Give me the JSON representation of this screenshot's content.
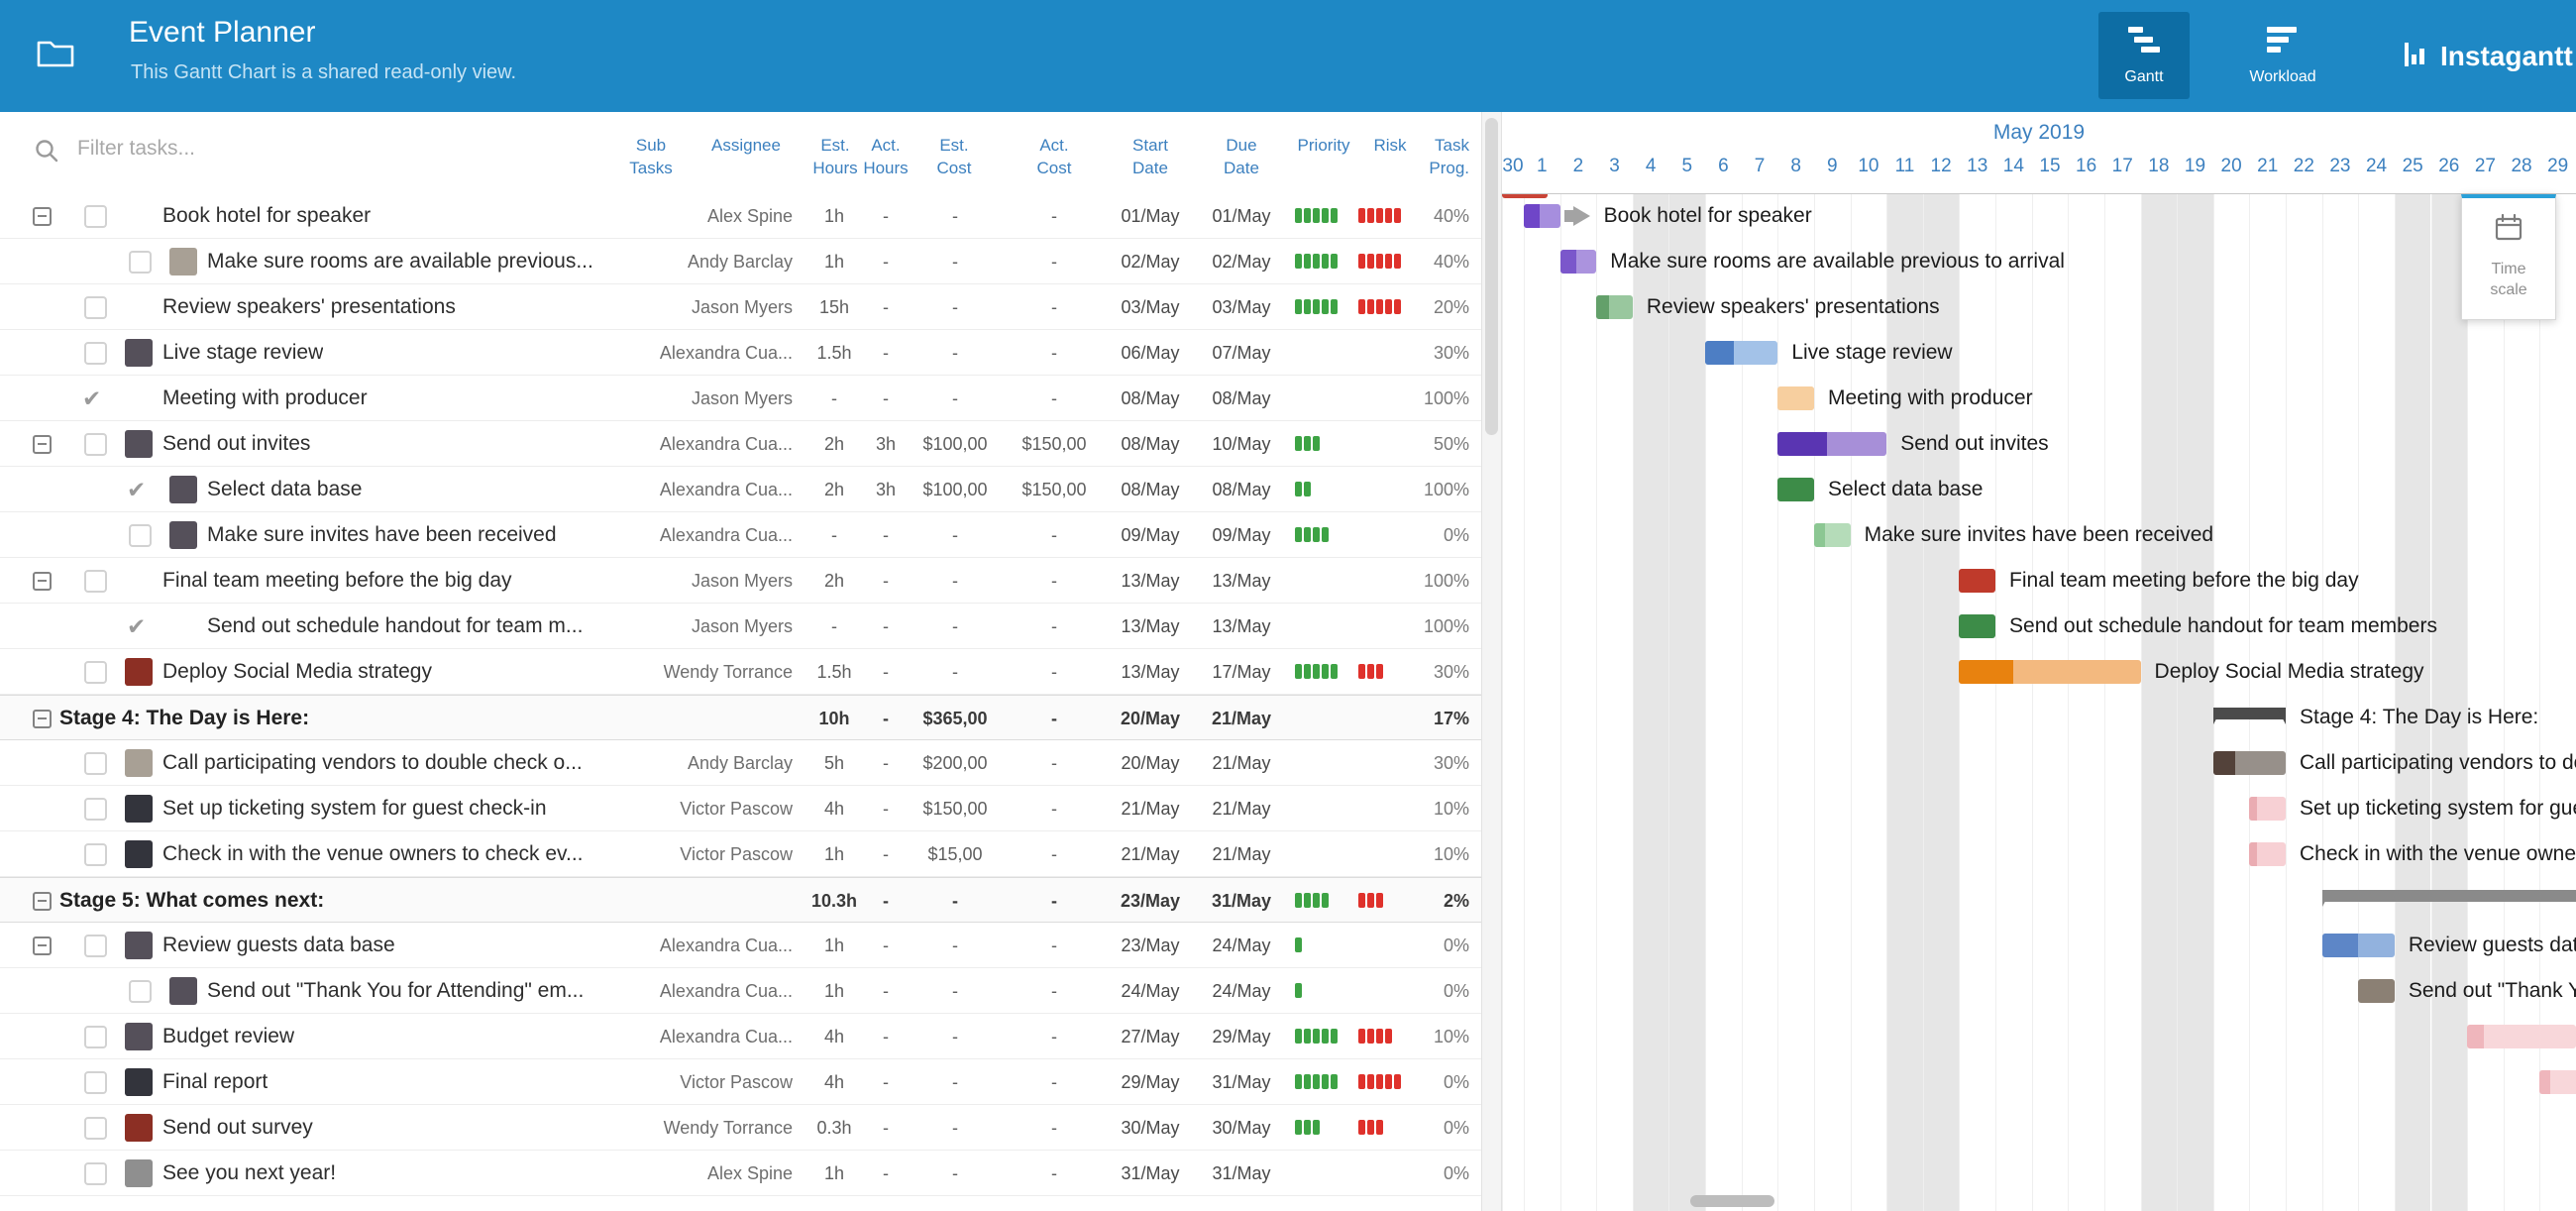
{
  "header": {
    "title": "Event Planner",
    "subtitle": "This Gantt Chart is a shared read-only view.",
    "nav": [
      {
        "label": "Gantt",
        "active": true
      },
      {
        "label": "Workload",
        "active": false
      }
    ],
    "brand": "Instagantt"
  },
  "left": {
    "filter_placeholder": "Filter tasks...",
    "columns": [
      {
        "cls": "sub",
        "lines": [
          "Sub",
          "Tasks"
        ]
      },
      {
        "cls": "assignee",
        "lines": [
          "Assignee"
        ]
      },
      {
        "cls": "esth",
        "lines": [
          "Est.",
          "Hours"
        ]
      },
      {
        "cls": "acth",
        "lines": [
          "Act.",
          "Hours"
        ]
      },
      {
        "cls": "estc",
        "lines": [
          "Est.",
          "Cost"
        ]
      },
      {
        "cls": "actc",
        "lines": [
          "Act.",
          "Cost"
        ]
      },
      {
        "cls": "start",
        "lines": [
          "Start",
          "Date"
        ]
      },
      {
        "cls": "due",
        "lines": [
          "Due",
          "Date"
        ]
      },
      {
        "cls": "pri",
        "lines": [
          "Priority"
        ]
      },
      {
        "cls": "risk",
        "lines": [
          "Risk"
        ]
      },
      {
        "cls": "prog",
        "lines": [
          "Task",
          "Prog."
        ]
      }
    ]
  },
  "timeline": {
    "month": "May 2019",
    "days": [
      "30",
      "1",
      "2",
      "3",
      "4",
      "5",
      "6",
      "7",
      "8",
      "9",
      "10",
      "11",
      "12",
      "13",
      "14",
      "15",
      "16",
      "17",
      "18",
      "19",
      "20",
      "21",
      "22",
      "23",
      "24",
      "25",
      "26",
      "27",
      "28",
      "29"
    ],
    "weekends": [
      4,
      5,
      11,
      12,
      18,
      19,
      25,
      26
    ]
  },
  "timescale": {
    "label": "Time scale"
  },
  "rows": [
    {
      "name": "Book hotel for speaker",
      "exp": true,
      "check": "box",
      "assignee": "Alex Spine",
      "eh": "1h",
      "start": "01/May",
      "due": "01/May",
      "pri": 5,
      "risk": 5,
      "prog": "40%",
      "bar": {
        "s": 1,
        "e": 1,
        "dark": "#6f46c8",
        "light": "#a68ede",
        "fill": 0.45,
        "arrow": true
      }
    },
    {
      "name": "Make sure rooms are available previous...",
      "full": "Make sure rooms are available previous to arrival",
      "indent": true,
      "check": "box",
      "avatar": "#a8a095",
      "assignee": "Andy Barclay",
      "eh": "1h",
      "start": "02/May",
      "due": "02/May",
      "pri": 5,
      "risk": 5,
      "prog": "40%",
      "bar": {
        "s": 2,
        "e": 2,
        "dark": "#7b57cb",
        "light": "#ab93de",
        "fill": 0.45
      }
    },
    {
      "name": "Review speakers' presentations",
      "check": "box",
      "assignee": "Jason Myers",
      "eh": "15h",
      "start": "03/May",
      "due": "03/May",
      "pri": 5,
      "risk": 5,
      "prog": "20%",
      "bar": {
        "s": 3,
        "e": 3,
        "dark": "#63a06a",
        "light": "#99c79e",
        "fill": 0.35
      }
    },
    {
      "name": "Live stage review",
      "check": "box",
      "avatar": "#55505a",
      "assignee": "Alexandra Cua...",
      "eh": "1.5h",
      "start": "06/May",
      "due": "07/May",
      "prog": "30%",
      "bar": {
        "s": 6,
        "e": 7,
        "dark": "#4d7ec4",
        "light": "#a3c2e8",
        "fill": 0.4
      }
    },
    {
      "name": "Meeting with producer",
      "check": "done",
      "assignee": "Jason Myers",
      "eh": "-",
      "start": "08/May",
      "due": "08/May",
      "prog": "100%",
      "bar": {
        "s": 8,
        "e": 8,
        "dark": "#f7cf9f",
        "light": "#f9d9b3",
        "fill": 1
      }
    },
    {
      "name": "Send out invites",
      "exp": true,
      "check": "box",
      "avatar": "#55505a",
      "assignee": "Alexandra Cua...",
      "eh": "2h",
      "ah": "3h",
      "ec": "$100,00",
      "ac": "$150,00",
      "start": "08/May",
      "due": "10/May",
      "pri": 3,
      "prog": "50%",
      "bar": {
        "s": 8,
        "e": 10,
        "dark": "#5a35b2",
        "light": "#a78fd8",
        "fill": 0.45
      }
    },
    {
      "name": "Select data base",
      "indent": true,
      "check": "done",
      "avatar": "#55505a",
      "assignee": "Alexandra Cua...",
      "eh": "2h",
      "ah": "3h",
      "ec": "$100,00",
      "ac": "$150,00",
      "start": "08/May",
      "due": "08/May",
      "pri": 2,
      "prog": "100%",
      "bar": {
        "s": 8,
        "e": 8,
        "dark": "#3d8c48",
        "light": "#3d8c48",
        "fill": 1
      }
    },
    {
      "name": "Make sure invites have been received",
      "indent": true,
      "check": "box",
      "avatar": "#55505a",
      "assignee": "Alexandra Cua...",
      "eh": "-",
      "start": "09/May",
      "due": "09/May",
      "pri": 4,
      "prog": "0%",
      "bar": {
        "s": 9,
        "e": 9,
        "dark": "#8cc793",
        "light": "#b5dcb9",
        "fill": 0.3
      }
    },
    {
      "name": "Final team meeting before the big day",
      "exp": true,
      "check": "box",
      "assignee": "Jason Myers",
      "eh": "2h",
      "start": "13/May",
      "due": "13/May",
      "prog": "100%",
      "bar": {
        "s": 13,
        "e": 13,
        "dark": "#bf3a2b",
        "light": "#bf3a2b",
        "fill": 1
      }
    },
    {
      "name": "Send out schedule handout for team m...",
      "full": "Send out schedule handout for team members",
      "indent": true,
      "check": "done",
      "assignee": "Jason Myers",
      "eh": "-",
      "start": "13/May",
      "due": "13/May",
      "prog": "100%",
      "bar": {
        "s": 13,
        "e": 13,
        "dark": "#3d8c48",
        "light": "#3d8c48",
        "fill": 1
      }
    },
    {
      "name": "Deploy Social Media strategy",
      "check": "box",
      "avatar": "#8c2f24",
      "assignee": "Wendy Torrance",
      "eh": "1.5h",
      "start": "13/May",
      "due": "17/May",
      "pri": 5,
      "risk": 3,
      "prog": "30%",
      "bar": {
        "s": 13,
        "e": 17,
        "dark": "#e8820f",
        "light": "#f3b97f",
        "fill": 0.3
      }
    },
    {
      "name": "Stage 4: The Day is Here:",
      "group": true,
      "exp": true,
      "eh": "10h",
      "ec": "$365,00",
      "start": "20/May",
      "due": "21/May",
      "prog": "17%",
      "bar": {
        "s": 20,
        "e": 21,
        "kind": "group",
        "dark": "#4b4b4b"
      }
    },
    {
      "name": "Call participating vendors to double check o...",
      "check": "box",
      "avatar": "#a8a095",
      "assignee": "Andy Barclay",
      "eh": "5h",
      "ec": "$200,00",
      "start": "20/May",
      "due": "21/May",
      "prog": "30%",
      "bar": {
        "s": 20,
        "e": 21,
        "dark": "#53423a",
        "light": "#97908a",
        "fill": 0.3
      }
    },
    {
      "name": "Set up ticketing system for guest check-in",
      "check": "box",
      "avatar": "#33343c",
      "assignee": "Victor Pascow",
      "eh": "4h",
      "ec": "$150,00",
      "start": "21/May",
      "due": "21/May",
      "prog": "10%",
      "bar": {
        "s": 21,
        "e": 21,
        "dark": "#eaacb2",
        "light": "#f7d0d4",
        "fill": 0.2
      }
    },
    {
      "name": "Check in with the venue owners to check ev...",
      "check": "box",
      "avatar": "#33343c",
      "assignee": "Victor Pascow",
      "eh": "1h",
      "ec": "$15,00",
      "start": "21/May",
      "due": "21/May",
      "prog": "10%",
      "bar": {
        "s": 21,
        "e": 21,
        "dark": "#eaacb2",
        "light": "#f7d0d4",
        "fill": 0.2
      }
    },
    {
      "name": "Stage 5: What comes next:",
      "group": true,
      "exp": true,
      "eh": "10.3h",
      "start": "23/May",
      "due": "31/May",
      "pri": 4,
      "risk": 3,
      "prog": "2%",
      "bar": {
        "s": 23,
        "e": 31,
        "kind": "group",
        "dark": "#8a8a8a"
      }
    },
    {
      "name": "Review guests data base",
      "exp": true,
      "check": "box",
      "avatar": "#55505a",
      "assignee": "Alexandra Cua...",
      "eh": "1h",
      "start": "23/May",
      "due": "24/May",
      "pri": 1,
      "prog": "0%",
      "bar": {
        "s": 23,
        "e": 24,
        "dark": "#5d86c7",
        "light": "#92b2de",
        "fill": 0.5
      }
    },
    {
      "name": "Send out \"Thank You for Attending\" em...",
      "indent": true,
      "check": "box",
      "avatar": "#55505a",
      "assignee": "Alexandra Cua...",
      "eh": "1h",
      "start": "24/May",
      "due": "24/May",
      "pri": 1,
      "prog": "0%",
      "bar": {
        "s": 24,
        "e": 24,
        "dark": "#8b8074",
        "light": "#8b8074",
        "fill": 1
      }
    },
    {
      "name": "Budget review",
      "check": "box",
      "avatar": "#55505a",
      "assignee": "Alexandra Cua...",
      "eh": "4h",
      "start": "27/May",
      "due": "29/May",
      "pri": 5,
      "risk": 4,
      "prog": "10%",
      "bar": {
        "s": 27,
        "e": 29,
        "dark": "#efb6bc",
        "light": "#f8d7da",
        "fill": 0.15
      }
    },
    {
      "name": "Final report",
      "check": "box",
      "avatar": "#33343c",
      "assignee": "Victor Pascow",
      "eh": "4h",
      "start": "29/May",
      "due": "31/May",
      "pri": 5,
      "risk": 5,
      "prog": "0%",
      "bar": {
        "s": 29,
        "e": 31,
        "dark": "#efb6bc",
        "light": "#f8d7da",
        "fill": 0.1
      }
    },
    {
      "name": "Send out survey",
      "check": "box",
      "avatar": "#8c2f24",
      "assignee": "Wendy Torrance",
      "eh": "0.3h",
      "start": "30/May",
      "due": "30/May",
      "pri": 3,
      "risk": 3,
      "prog": "0%",
      "bar": null
    },
    {
      "name": "See you next year!",
      "check": "box",
      "avatar": "#8f8f8f",
      "assignee": "Alex Spine",
      "eh": "1h",
      "start": "31/May",
      "due": "31/May",
      "prog": "0%",
      "bar": null
    }
  ]
}
